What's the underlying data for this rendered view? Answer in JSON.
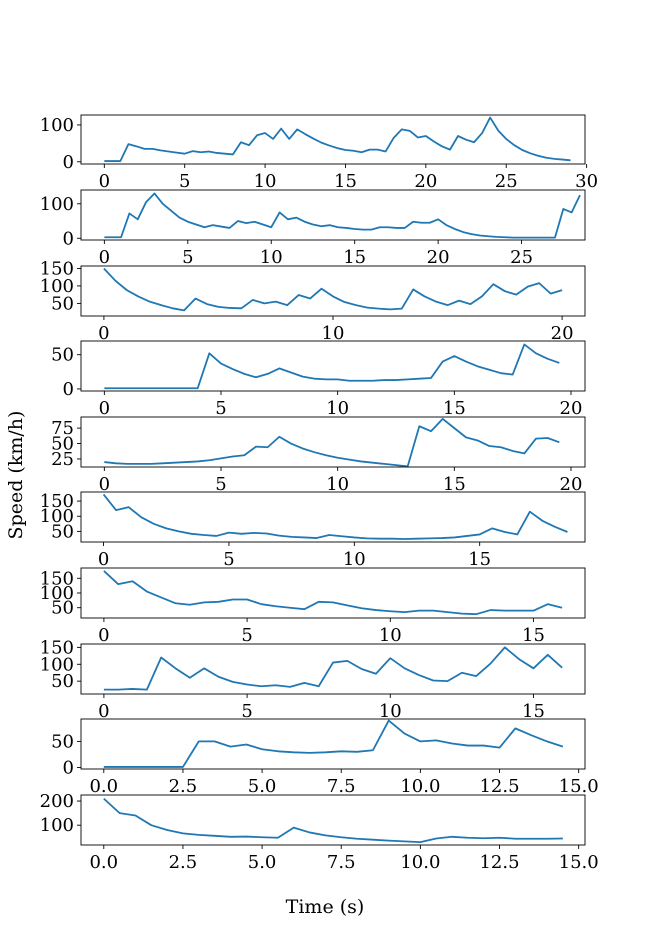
{
  "chart_data": {
    "type": "line",
    "xlabel": "Time (s)",
    "ylabel": "Speed (km/h)",
    "line_color": "#1f77b4",
    "grid": false,
    "panels": [
      {
        "xlim": [
          -1.45,
          29.9
        ],
        "ylim": [
          -6,
          127
        ],
        "xticks": [
          0,
          5,
          10,
          15,
          20,
          25,
          30
        ],
        "yticks": [
          0,
          100
        ],
        "x": [
          0,
          0.5,
          1,
          1.5,
          2,
          2.5,
          3,
          3.5,
          4,
          4.5,
          5,
          5.5,
          6,
          6.5,
          7,
          7.5,
          8,
          8.5,
          9,
          9.5,
          10,
          10.5,
          11,
          11.5,
          12,
          12.5,
          13,
          13.5,
          14,
          14.5,
          15,
          15.5,
          16,
          16.5,
          17,
          17.5,
          18,
          18.5,
          19,
          19.5,
          20,
          20.5,
          21,
          21.5,
          22,
          22.5,
          23,
          23.5,
          24,
          24.5,
          25,
          25.5,
          26,
          26.5,
          27,
          27.5,
          28,
          28.5,
          29
        ],
        "y": [
          2,
          2,
          2,
          48,
          42,
          35,
          35,
          31,
          28,
          25,
          22,
          29,
          26,
          28,
          24,
          22,
          20,
          53,
          45,
          72,
          78,
          62,
          90,
          62,
          88,
          75,
          63,
          52,
          44,
          37,
          32,
          30,
          26,
          33,
          33,
          28,
          65,
          88,
          84,
          66,
          70,
          55,
          42,
          33,
          70,
          60,
          53,
          78,
          120,
          85,
          62,
          45,
          32,
          23,
          16,
          11,
          8,
          6,
          4
        ]
      },
      {
        "xlim": [
          -1.4,
          28.8
        ],
        "ylim": [
          -5,
          140
        ],
        "xticks": [
          0,
          5,
          10,
          15,
          20,
          25
        ],
        "yticks": [
          0,
          100
        ],
        "x": [
          0,
          0.5,
          1,
          1.5,
          2,
          2.5,
          3,
          3.5,
          4,
          4.5,
          5,
          5.5,
          6,
          6.5,
          7,
          7.5,
          8,
          8.5,
          9,
          9.5,
          10,
          10.5,
          11,
          11.5,
          12,
          12.5,
          13,
          13.5,
          14,
          14.5,
          15,
          15.5,
          16,
          16.5,
          17,
          17.5,
          18,
          18.5,
          19,
          19.5,
          20,
          20.5,
          21,
          21.5,
          22,
          22.5,
          23,
          23.5,
          24,
          24.5,
          25,
          25.5,
          26,
          26.5,
          27,
          27.5,
          28,
          28.5
        ],
        "y": [
          3,
          3,
          3,
          72,
          55,
          105,
          130,
          100,
          80,
          60,
          48,
          40,
          32,
          38,
          34,
          30,
          50,
          44,
          48,
          40,
          32,
          75,
          55,
          60,
          48,
          40,
          35,
          38,
          32,
          30,
          27,
          25,
          25,
          32,
          32,
          30,
          30,
          48,
          45,
          45,
          55,
          38,
          27,
          18,
          12,
          8,
          6,
          4,
          3,
          2,
          2,
          2,
          2,
          2,
          2,
          85,
          75,
          125
        ]
      },
      {
        "xlim": [
          -1,
          21
        ],
        "ylim": [
          14,
          157
        ],
        "xticks": [
          0,
          10,
          20
        ],
        "yticks": [
          50,
          100,
          150
        ],
        "x": [
          0,
          0.5,
          1,
          1.5,
          2,
          2.5,
          3,
          3.5,
          4,
          4.5,
          5,
          5.5,
          6,
          6.5,
          7,
          7.5,
          8,
          8.5,
          9,
          9.5,
          10,
          10.5,
          11,
          11.5,
          12,
          12.5,
          13,
          13.5,
          14,
          14.5,
          15,
          15.5,
          16,
          16.5,
          17,
          17.5,
          18,
          18.5,
          19,
          19.5,
          20
        ],
        "y": [
          150,
          115,
          88,
          70,
          55,
          45,
          36,
          30,
          64,
          48,
          40,
          37,
          36,
          60,
          50,
          55,
          45,
          74,
          64,
          92,
          70,
          54,
          45,
          38,
          35,
          33,
          35,
          90,
          70,
          55,
          45,
          58,
          48,
          70,
          105,
          85,
          75,
          98,
          108,
          78,
          88
        ]
      },
      {
        "xlim": [
          -1,
          20.6
        ],
        "ylim": [
          -3,
          70
        ],
        "xticks": [
          0,
          5,
          10,
          15,
          20
        ],
        "yticks": [
          0,
          50
        ],
        "x": [
          0,
          0.5,
          1,
          1.5,
          2,
          2.5,
          3,
          3.5,
          4,
          4.5,
          5,
          5.5,
          6,
          6.5,
          7,
          7.5,
          8,
          8.5,
          9,
          9.5,
          10,
          10.5,
          11,
          11.5,
          12,
          12.5,
          13,
          13.5,
          14,
          14.5,
          15,
          15.5,
          16,
          16.5,
          17,
          17.5,
          18,
          18.5,
          19,
          19.5
        ],
        "y": [
          1,
          1,
          1,
          1,
          1,
          1,
          1,
          1,
          1,
          52,
          37,
          29,
          22,
          17,
          22,
          30,
          24,
          18,
          15,
          14,
          14,
          12,
          12,
          12,
          13,
          13,
          14,
          15,
          16,
          40,
          48,
          40,
          33,
          28,
          23,
          21,
          65,
          52,
          44,
          38
        ]
      },
      {
        "xlim": [
          -1,
          20.6
        ],
        "ylim": [
          12,
          93
        ],
        "xticks": [
          0,
          5,
          10,
          15,
          20
        ],
        "yticks": [
          25,
          50,
          75
        ],
        "x": [
          0,
          0.5,
          1,
          1.5,
          2,
          2.5,
          3,
          3.5,
          4,
          4.5,
          5,
          5.5,
          6,
          6.5,
          7,
          7.5,
          8,
          8.5,
          9,
          9.5,
          10,
          10.5,
          11,
          11.5,
          12,
          12.5,
          13,
          13.5,
          14,
          14.5,
          15,
          15.5,
          16,
          16.5,
          17,
          17.5,
          18,
          18.5,
          19,
          19.5
        ],
        "y": [
          20,
          18,
          17,
          17,
          17,
          18,
          19,
          20,
          21,
          23,
          26,
          29,
          31,
          45,
          44,
          61,
          50,
          42,
          36,
          31,
          27,
          24,
          21,
          19,
          17,
          15,
          13,
          78,
          70,
          90,
          75,
          60,
          55,
          46,
          44,
          38,
          34,
          58,
          59,
          52
        ]
      },
      {
        "xlim": [
          -0.9,
          19.2
        ],
        "ylim": [
          15,
          180
        ],
        "xticks": [
          0,
          5,
          10,
          15
        ],
        "yticks": [
          50,
          100,
          150
        ],
        "x": [
          0,
          0.5,
          1,
          1.5,
          2,
          2.5,
          3,
          3.5,
          4,
          4.5,
          5,
          5.5,
          6,
          6.5,
          7,
          7.5,
          8,
          8.5,
          9,
          9.5,
          10,
          10.5,
          11,
          11.5,
          12,
          12.5,
          13,
          13.5,
          14,
          14.5,
          15,
          15.5,
          16,
          16.5,
          17,
          17.5,
          18,
          18.5
        ],
        "y": [
          172,
          120,
          130,
          97,
          75,
          60,
          50,
          42,
          38,
          35,
          46,
          42,
          45,
          43,
          36,
          32,
          30,
          28,
          38,
          34,
          30,
          27,
          26,
          26,
          25,
          26,
          27,
          28,
          30,
          35,
          40,
          60,
          48,
          40,
          115,
          85,
          65,
          48
        ]
      },
      {
        "xlim": [
          -0.8,
          16.8
        ],
        "ylim": [
          15,
          185
        ],
        "xticks": [
          0,
          5,
          10,
          15
        ],
        "yticks": [
          50,
          100,
          150
        ],
        "x": [
          0,
          0.5,
          1,
          1.5,
          2,
          2.5,
          3,
          3.5,
          4,
          4.5,
          5,
          5.5,
          6,
          6.5,
          7,
          7.5,
          8,
          8.5,
          9,
          9.5,
          10,
          10.5,
          11,
          11.5,
          12,
          12.5,
          13,
          13.5,
          14,
          14.5,
          15,
          15.5,
          16
        ],
        "y": [
          175,
          130,
          140,
          105,
          85,
          65,
          60,
          68,
          70,
          78,
          78,
          62,
          55,
          50,
          45,
          70,
          68,
          58,
          48,
          42,
          38,
          35,
          40,
          40,
          35,
          30,
          28,
          42,
          40,
          40,
          40,
          62,
          50
        ]
      },
      {
        "xlim": [
          -0.8,
          16.8
        ],
        "ylim": [
          12,
          160
        ],
        "xticks": [
          0,
          5,
          10,
          15
        ],
        "yticks": [
          50,
          100,
          150
        ],
        "x": [
          0,
          0.5,
          1,
          1.5,
          2,
          2.5,
          3,
          3.5,
          4,
          4.5,
          5,
          5.5,
          6,
          6.5,
          7,
          7.5,
          8,
          8.5,
          9,
          9.5,
          10,
          10.5,
          11,
          11.5,
          12,
          12.5,
          13,
          13.5,
          14,
          14.5,
          15,
          15.5,
          16
        ],
        "y": [
          25,
          25,
          27,
          25,
          120,
          88,
          60,
          88,
          63,
          48,
          40,
          35,
          38,
          33,
          45,
          35,
          105,
          110,
          86,
          72,
          118,
          88,
          68,
          52,
          50,
          75,
          65,
          102,
          150,
          115,
          88,
          128,
          90
        ]
      },
      {
        "xlim": [
          -0.72,
          15.2
        ],
        "ylim": [
          -3,
          93
        ],
        "xticks": [
          0.0,
          2.5,
          5.0,
          7.5,
          10.0,
          12.5,
          15.0
        ],
        "yticks": [
          0,
          50
        ],
        "x": [
          0,
          0.5,
          1,
          1.5,
          2,
          2.5,
          3,
          3.5,
          4,
          4.5,
          5,
          5.5,
          6,
          6.5,
          7,
          7.5,
          8,
          8.5,
          9,
          9.5,
          10,
          10.5,
          11,
          11.5,
          12,
          12.5,
          13,
          13.5,
          14,
          14.5
        ],
        "y": [
          1,
          1,
          1,
          1,
          1,
          1,
          50,
          50,
          40,
          44,
          35,
          31,
          29,
          28,
          29,
          31,
          30,
          33,
          90,
          65,
          50,
          52,
          46,
          42,
          42,
          38,
          75,
          62,
          50,
          40
        ]
      },
      {
        "xlim": [
          -0.72,
          15.2
        ],
        "ylim": [
          18,
          225
        ],
        "xticks": [
          0.0,
          2.5,
          5.0,
          7.5,
          10.0,
          12.5,
          15.0
        ],
        "yticks": [
          100,
          200
        ],
        "x": [
          0,
          0.5,
          1,
          1.5,
          2,
          2.5,
          3,
          3.5,
          4,
          4.5,
          5,
          5.5,
          6,
          6.5,
          7,
          7.5,
          8,
          8.5,
          9,
          9.5,
          10,
          10.5,
          11,
          11.5,
          12,
          12.5,
          13,
          13.5,
          14,
          14.5
        ],
        "y": [
          210,
          150,
          140,
          100,
          80,
          66,
          60,
          56,
          52,
          53,
          50,
          48,
          90,
          70,
          58,
          50,
          44,
          40,
          36,
          33,
          30,
          45,
          52,
          48,
          46,
          48,
          44,
          44,
          44,
          45
        ]
      }
    ]
  }
}
